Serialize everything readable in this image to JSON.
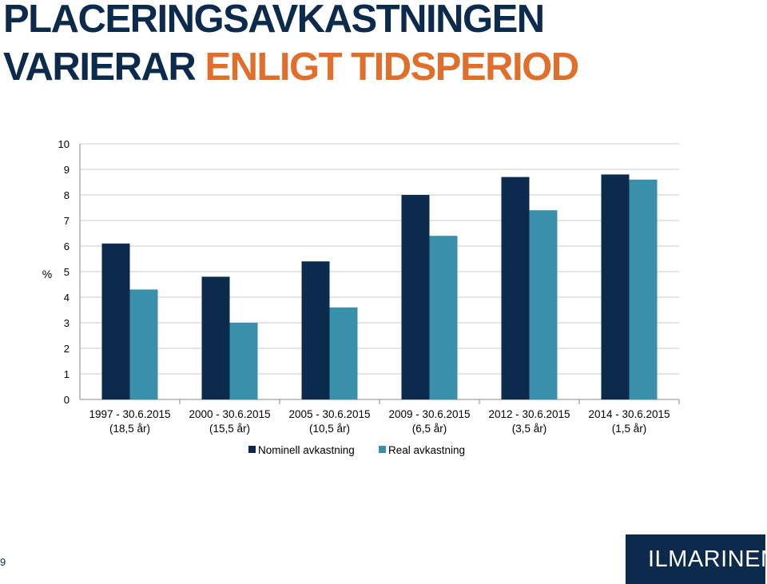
{
  "header": {
    "title_line1": "PLACERINGSAVKASTNINGEN",
    "title_line2_a": "VARIERAR ",
    "title_line2_b": "ENLIGT TIDSPERIOD"
  },
  "footer": {
    "page_number": "9",
    "logo_text": "ILMARINEN"
  },
  "colors": {
    "title": "#0b2a4c",
    "accent": "#e06f2b",
    "nominal": "#0b2a4c",
    "real": "#3a8fab"
  },
  "chart_data": {
    "type": "bar",
    "ylabel": "%",
    "ylim": [
      0,
      10
    ],
    "yticks": [
      0,
      1,
      2,
      3,
      4,
      5,
      6,
      7,
      8,
      9,
      10
    ],
    "grid": true,
    "legend_position": "bottom",
    "categories": [
      [
        "1997 - 30.6.2015",
        "(18,5 år)"
      ],
      [
        "2000 - 30.6.2015",
        "(15,5 år)"
      ],
      [
        "2005 - 30.6.2015",
        "(10,5 år)"
      ],
      [
        "2009 - 30.6.2015",
        "(6,5 år)"
      ],
      [
        "2012 - 30.6.2015",
        "(3,5 år)"
      ],
      [
        "2014 - 30.6.2015",
        "(1,5 år)"
      ]
    ],
    "series": [
      {
        "name": "Nominell avkastning",
        "color": "#0b2a4c",
        "values": [
          6.1,
          4.8,
          5.4,
          8.0,
          8.7,
          8.8
        ]
      },
      {
        "name": "Real avkastning",
        "color": "#3a8fab",
        "values": [
          4.3,
          3.0,
          3.6,
          6.4,
          7.4,
          8.6
        ]
      }
    ]
  }
}
